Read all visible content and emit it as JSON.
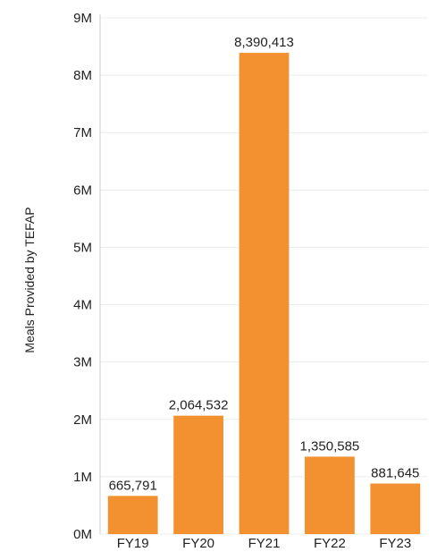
{
  "chart_data": {
    "type": "bar",
    "categories": [
      "FY19",
      "FY20",
      "FY21",
      "FY22",
      "FY23"
    ],
    "values": [
      665791,
      2064532,
      8390413,
      1350585,
      881645
    ],
    "value_labels": [
      "665,791",
      "2,064,532",
      "8,390,413",
      "1,350,585",
      "881,645"
    ],
    "title": "",
    "xlabel": "",
    "ylabel": "Meals Provided by TEFAP",
    "ylim": [
      0,
      9000000
    ],
    "yticks": [
      0,
      1000000,
      2000000,
      3000000,
      4000000,
      5000000,
      6000000,
      7000000,
      8000000,
      9000000
    ],
    "ytick_labels": [
      "0M",
      "1M",
      "2M",
      "3M",
      "4M",
      "5M",
      "6M",
      "7M",
      "8M",
      "9M"
    ],
    "grid": true,
    "bar_color": "#F39130"
  }
}
